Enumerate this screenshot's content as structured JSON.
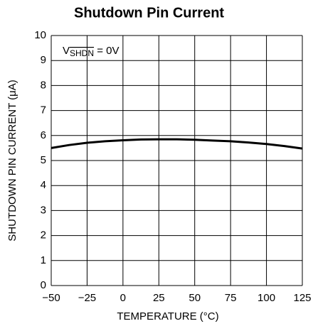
{
  "chart_data": {
    "type": "line",
    "title": "Shutdown Pin Current",
    "annotation": [
      "V",
      "SHDN",
      " = 0V"
    ],
    "xlabel": "TEMPERATURE (°C)",
    "ylabel": "SHUTDOWN PIN CURRENT (μA)",
    "x": [
      -50,
      -37.5,
      -25,
      -12.5,
      0,
      12.5,
      25,
      37.5,
      50,
      62.5,
      75,
      87.5,
      100,
      112.5,
      125
    ],
    "series": [
      {
        "color": "#000000",
        "values": [
          5.5,
          5.62,
          5.71,
          5.77,
          5.81,
          5.84,
          5.85,
          5.85,
          5.83,
          5.8,
          5.77,
          5.72,
          5.66,
          5.58,
          5.48
        ]
      }
    ],
    "xlim": [
      -50,
      125
    ],
    "xticks": [
      {
        "value": -50,
        "label": "−50"
      },
      {
        "value": -25,
        "label": "−25"
      },
      0,
      25,
      50,
      75,
      100,
      125
    ],
    "ylim": [
      0,
      10
    ],
    "yticks": [
      0,
      1,
      2,
      3,
      4,
      5,
      6,
      7,
      8,
      9,
      10
    ],
    "grid": true
  }
}
